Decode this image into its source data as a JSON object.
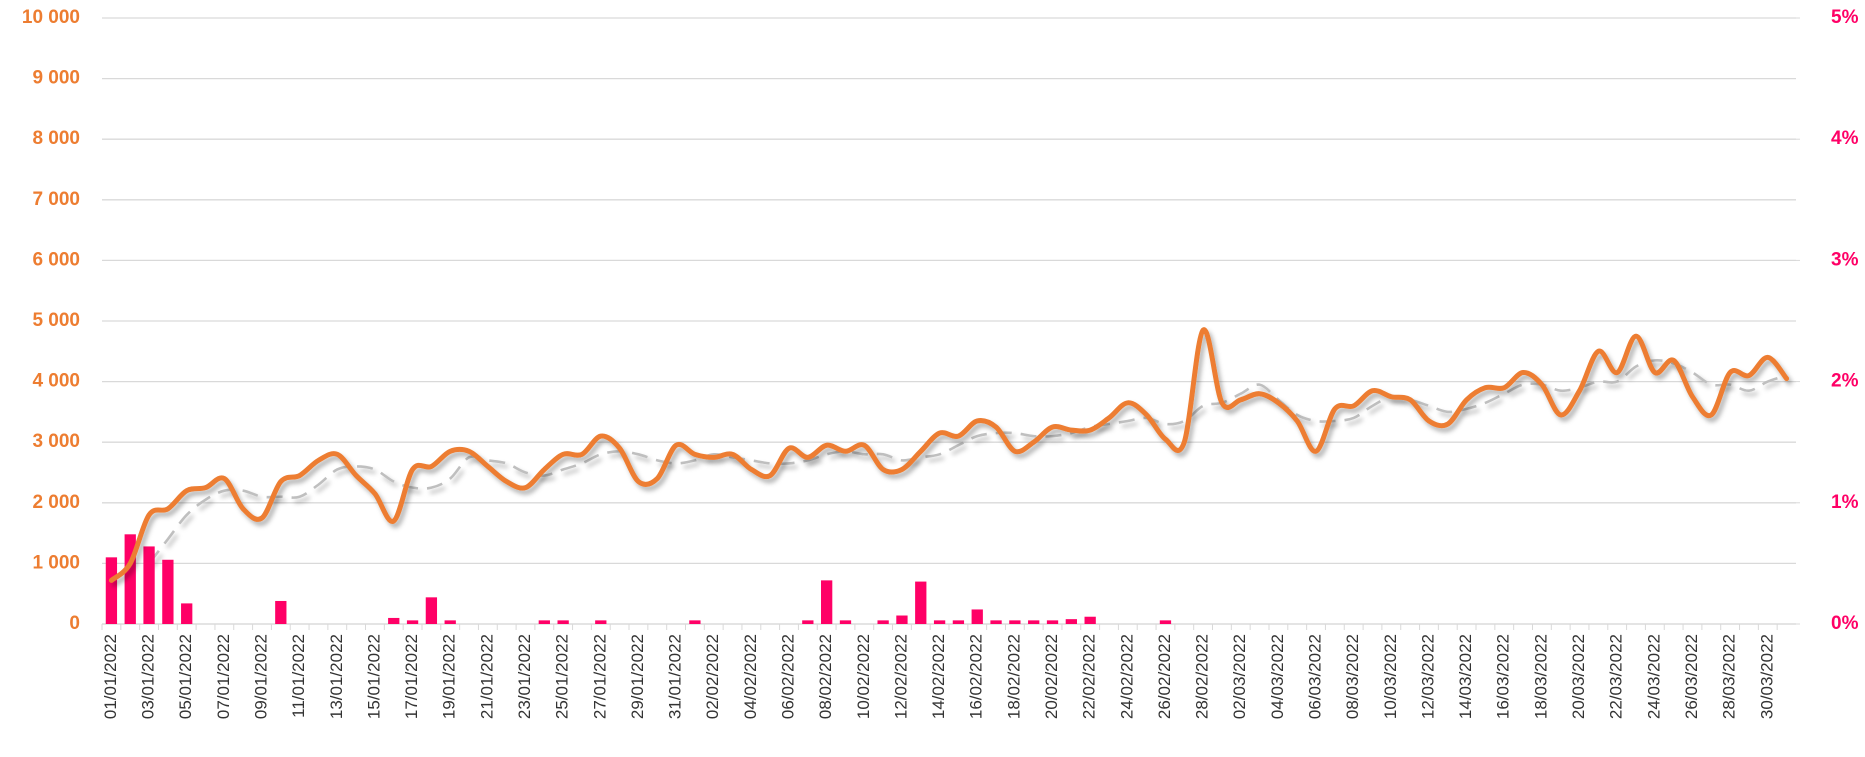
{
  "chart_data": {
    "type": "combo",
    "categories": [
      "01/01/2022",
      null,
      "03/01/2022",
      null,
      "05/01/2022",
      null,
      "07/01/2022",
      null,
      "09/01/2022",
      null,
      "11/01/2022",
      null,
      "13/01/2022",
      null,
      "15/01/2022",
      null,
      "17/01/2022",
      null,
      "19/01/2022",
      null,
      "21/01/2022",
      null,
      "23/01/2022",
      null,
      "25/01/2022",
      null,
      "27/01/2022",
      null,
      "29/01/2022",
      null,
      "31/01/2022",
      null,
      "02/02/2022",
      null,
      "04/02/2022",
      null,
      "06/02/2022",
      null,
      "08/02/2022",
      null,
      "10/02/2022",
      null,
      "12/02/2022",
      null,
      "14/02/2022",
      null,
      "16/02/2022",
      null,
      "18/02/2022",
      null,
      "20/02/2022",
      null,
      "22/02/2022",
      null,
      "24/02/2022",
      null,
      "26/02/2022",
      null,
      "28/02/2022",
      null,
      "02/03/2022",
      null,
      "04/03/2022",
      null,
      "06/03/2022",
      null,
      "08/03/2022",
      null,
      "10/03/2022",
      null,
      "12/03/2022",
      null,
      "14/03/2022",
      null,
      "16/03/2022",
      null,
      "18/03/2022",
      null,
      "20/03/2022",
      null,
      "22/03/2022",
      null,
      "24/03/2022",
      null,
      "26/03/2022",
      null,
      "28/03/2022",
      null,
      "30/03/2022",
      null
    ],
    "series": [
      {
        "type": "bar",
        "axis": "y2",
        "color": "#ff0066",
        "values": [
          0.55,
          0.74,
          0.64,
          0.53,
          0.17,
          0,
          0,
          0,
          0,
          0.19,
          0,
          0,
          0,
          0,
          0,
          0.05,
          0.03,
          0.22,
          0.03,
          0,
          0,
          0,
          0,
          0.03,
          0.03,
          0,
          0.03,
          0,
          0,
          0,
          0,
          0.03,
          0,
          0,
          0,
          0,
          0,
          0.03,
          0.36,
          0.03,
          0,
          0.03,
          0.07,
          0.35,
          0.03,
          0.03,
          0.12,
          0.03,
          0.03,
          0.03,
          0.03,
          0.04,
          0.06,
          0,
          0,
          0,
          0.03,
          0,
          0,
          0,
          0,
          0,
          0,
          0,
          0,
          0,
          0,
          0,
          0,
          0,
          0,
          0,
          0,
          0,
          0,
          0,
          0,
          0,
          0,
          0,
          0,
          0,
          0,
          0,
          0,
          0,
          0,
          0,
          0,
          0
        ]
      },
      {
        "type": "line",
        "axis": "y",
        "color": "#ed7d31",
        "values": [
          720,
          1000,
          1800,
          1900,
          2200,
          2250,
          2400,
          1900,
          1750,
          2350,
          2450,
          2700,
          2800,
          2450,
          2150,
          1700,
          2550,
          2600,
          2850,
          2850,
          2600,
          2350,
          2250,
          2550,
          2800,
          2800,
          3100,
          2900,
          2350,
          2400,
          2950,
          2800,
          2750,
          2800,
          2550,
          2450,
          2900,
          2750,
          2950,
          2850,
          2950,
          2550,
          2550,
          2850,
          3150,
          3100,
          3350,
          3250,
          2850,
          3000,
          3250,
          3200,
          3200,
          3400,
          3650,
          3450,
          3050,
          3000,
          4850,
          3650,
          3700,
          3800,
          3650,
          3350,
          2850,
          3550,
          3600,
          3850,
          3750,
          3700,
          3350,
          3300,
          3700,
          3900,
          3900,
          4150,
          3950,
          3450,
          3850,
          4500,
          4150,
          4750,
          4150,
          4350,
          3750,
          3450,
          4150,
          4100,
          4400,
          4050
        ]
      },
      {
        "type": "line",
        "axis": "y",
        "color": "#bfbfbf",
        "dashed": true,
        "values": [
          null,
          null,
          1000,
          1400,
          1800,
          2050,
          2200,
          2200,
          2100,
          2100,
          2100,
          2300,
          2550,
          2600,
          2550,
          2350,
          2250,
          2250,
          2400,
          2750,
          2700,
          2650,
          2500,
          2450,
          2550,
          2650,
          2800,
          2850,
          2800,
          2700,
          2650,
          2700,
          2800,
          2750,
          2700,
          2650,
          2650,
          2700,
          2800,
          2850,
          2800,
          2800,
          2700,
          2750,
          2800,
          2950,
          3100,
          3150,
          3150,
          3100,
          3100,
          3150,
          3250,
          3300,
          3350,
          3400,
          3300,
          3350,
          3600,
          3650,
          3800,
          3950,
          3700,
          3450,
          3350,
          3350,
          3400,
          3600,
          3750,
          3700,
          3600,
          3500,
          3550,
          3650,
          3800,
          3950,
          3950,
          3850,
          3900,
          4000,
          4000,
          4250,
          4350,
          4300,
          4150,
          3950,
          3950,
          3850,
          4000,
          4100
        ]
      }
    ],
    "ylim": [
      0,
      10000
    ],
    "yticks": [
      0,
      {
        "value": 1000,
        "label": "1 000"
      },
      {
        "value": 2000,
        "label": "2 000"
      },
      {
        "value": 3000,
        "label": "3 000"
      },
      {
        "value": 4000,
        "label": "4 000"
      },
      {
        "value": 5000,
        "label": "5 000"
      },
      {
        "value": 6000,
        "label": "6 000"
      },
      {
        "value": 7000,
        "label": "7 000"
      },
      {
        "value": 8000,
        "label": "8 000"
      },
      {
        "value": 9000,
        "label": "9 000"
      },
      {
        "value": 10000,
        "label": "10 000"
      }
    ],
    "y2lim": [
      0,
      5
    ],
    "y2ticks": [
      {
        "value": 0,
        "label": "0%"
      },
      {
        "value": 1,
        "label": "1%"
      },
      {
        "value": 2,
        "label": "2%"
      },
      {
        "value": 3,
        "label": "3%"
      },
      {
        "value": 4,
        "label": "4%"
      },
      {
        "value": 5,
        "label": "5%"
      }
    ],
    "ycolor": "#ed7d31",
    "y2color": "#ff0066",
    "grid": true
  }
}
